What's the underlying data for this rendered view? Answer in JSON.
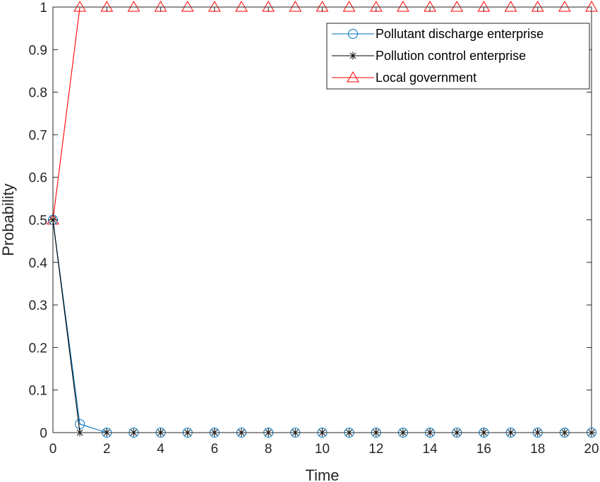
{
  "chart_data": {
    "type": "line",
    "title": "",
    "xlabel": "Time",
    "ylabel": "Probability",
    "xlim": [
      0,
      20
    ],
    "ylim": [
      0,
      1
    ],
    "xticks": [
      0,
      2,
      4,
      6,
      8,
      10,
      12,
      14,
      16,
      18,
      20
    ],
    "yticks": [
      0,
      0.1,
      0.2,
      0.3,
      0.4,
      0.5,
      0.6,
      0.7,
      0.8,
      0.9,
      1
    ],
    "grid": false,
    "legend_position": "top-right",
    "x": [
      0,
      1,
      2,
      3,
      4,
      5,
      6,
      7,
      8,
      9,
      10,
      11,
      12,
      13,
      14,
      15,
      16,
      17,
      18,
      19,
      20
    ],
    "series": [
      {
        "name": "Pollutant discharge enterprise",
        "color": "#0072BD",
        "marker": "circle",
        "values": [
          0.5,
          0.02,
          0,
          0,
          0,
          0,
          0,
          0,
          0,
          0,
          0,
          0,
          0,
          0,
          0,
          0,
          0,
          0,
          0,
          0,
          0
        ]
      },
      {
        "name": "Pollution control enterprise",
        "color": "#000000",
        "marker": "asterisk",
        "values": [
          0.5,
          0,
          0,
          0,
          0,
          0,
          0,
          0,
          0,
          0,
          0,
          0,
          0,
          0,
          0,
          0,
          0,
          0,
          0,
          0,
          0
        ]
      },
      {
        "name": "Local government",
        "color": "#FF0000",
        "marker": "triangle",
        "values": [
          0.5,
          1,
          1,
          1,
          1,
          1,
          1,
          1,
          1,
          1,
          1,
          1,
          1,
          1,
          1,
          1,
          1,
          1,
          1,
          1,
          1
        ]
      }
    ]
  }
}
